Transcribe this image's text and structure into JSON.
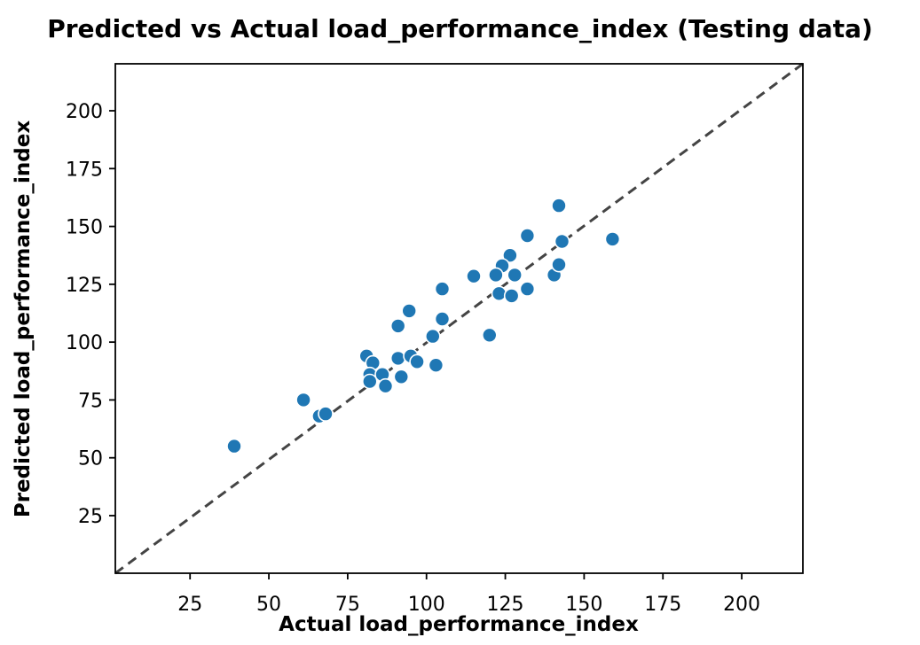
{
  "chart_data": {
    "type": "scatter",
    "title": "Predicted vs Actual load_performance_index (Testing data)",
    "xlabel": "Actual load_performance_index",
    "ylabel": "Predicted load_performance_index",
    "xlim": [
      1.3,
      219.4
    ],
    "ylim": [
      0.1,
      220.3
    ],
    "xticks": [
      25,
      50,
      75,
      100,
      125,
      150,
      175,
      200
    ],
    "yticks": [
      25,
      50,
      75,
      100,
      125,
      150,
      175,
      200
    ],
    "grid": false,
    "legend": null,
    "marker_color": "#1f77b4",
    "marker_edge_color": "#ffffff",
    "spine_color": "#000000",
    "identity_line": {
      "equation": "y = x",
      "style": "dashed",
      "color": "#444444"
    },
    "points": [
      [
        39,
        55
      ],
      [
        61,
        75
      ],
      [
        66,
        68
      ],
      [
        68,
        69
      ],
      [
        81,
        94
      ],
      [
        83,
        91
      ],
      [
        82,
        86
      ],
      [
        82,
        83
      ],
      [
        86,
        86
      ],
      [
        87,
        81
      ],
      [
        91,
        93
      ],
      [
        92,
        85
      ],
      [
        95,
        94
      ],
      [
        97,
        91.5
      ],
      [
        103,
        90
      ],
      [
        91,
        107
      ],
      [
        94.5,
        113.5
      ],
      [
        102,
        102.5
      ],
      [
        105,
        110
      ],
      [
        105,
        123
      ],
      [
        115,
        128.5
      ],
      [
        120,
        103
      ],
      [
        126.5,
        137.5
      ],
      [
        124,
        133
      ],
      [
        122,
        129
      ],
      [
        128,
        129
      ],
      [
        123,
        121
      ],
      [
        127,
        120
      ],
      [
        132,
        123
      ],
      [
        140.5,
        129
      ],
      [
        142,
        133.5
      ],
      [
        142,
        159
      ],
      [
        132,
        146
      ],
      [
        143,
        143.5
      ],
      [
        159,
        144.5
      ]
    ]
  }
}
